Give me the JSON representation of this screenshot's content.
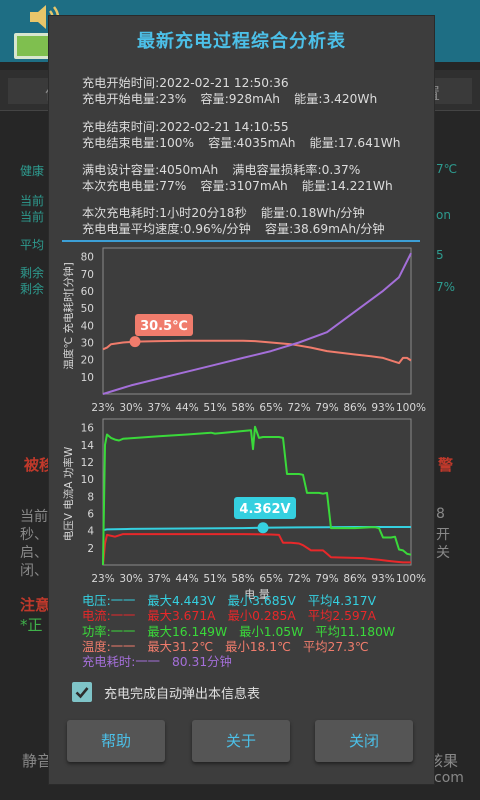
{
  "dialog": {
    "title": "最新充电过程综合分析表",
    "start": {
      "time": "充电开始时间:2022-02-21 12:50:36",
      "level": "充电开始电量:23%",
      "capacity": "容量:928mAh",
      "energy": "能量:3.420Wh"
    },
    "end": {
      "time": "充电结束时间:2022-02-21 14:10:55",
      "level": "充电结束电量:100%",
      "capacity": "容量:4035mAh",
      "energy": "能量:17.641Wh"
    },
    "design": {
      "design_capacity": "满电设计容量:4050mAh",
      "loss": "满电容量损耗率:0.37%",
      "this_charge": "本次充电电量:77%",
      "capacity": "容量:3107mAh",
      "energy": "能量:14.221Wh"
    },
    "duration": {
      "time": "本次充电耗时:1小时20分18秒",
      "energy_rate": "能量:0.18Wh/分钟",
      "avg_speed": "充电电量平均速度:0.96%/分钟",
      "capacity_rate": "容量:38.69mAh/分钟"
    },
    "stats": {
      "voltage": [
        "电压:一一",
        "最大4.443V",
        "最小3.685V",
        "平均4.317V"
      ],
      "current": [
        "电流:一一",
        "最大3.671A",
        "最小0.285A",
        "平均2.597A"
      ],
      "power": [
        "功率:一一",
        "最大16.149W",
        "最小1.05W",
        "平均11.180W"
      ],
      "temperature": [
        "温度:一一",
        "最大31.2℃",
        "最小18.1℃",
        "平均27.3℃"
      ],
      "elapsed": [
        "充电耗时:一一",
        "80.31分钟"
      ]
    },
    "auto_popup_label": "充电完成自动弹出本信息表",
    "auto_popup_checked": true,
    "buttons": {
      "help": "帮助",
      "about": "关于",
      "close": "关闭"
    }
  },
  "background": {
    "tab_left": "作",
    "tab_right": "置",
    "health": "健康",
    "line1": "当前",
    "line2": "当前",
    "line3": "平均",
    "rem1": "剩余",
    "rem2": "剩余",
    "warn_left": "被移",
    "warn_right": "警",
    "para1": "当前",
    "para2": "秒、",
    "para3": "启、",
    "para4": "闭、",
    "note": "注意",
    "note2": "*正",
    "footer_left": "静音",
    "footer_right": "核果",
    "footer_com": "com",
    "right1": "7℃",
    "right2": "on",
    "right3": "5",
    "right4": "7%",
    "rt_a": "开",
    "rt_b": "关",
    "rt_c": "8"
  },
  "chart_data": [
    {
      "type": "line",
      "xlabel": "",
      "ylabel": "温度℃  充电耗时[分钟]",
      "categories": [
        "23%",
        "30%",
        "37%",
        "44%",
        "51%",
        "58%",
        "65%",
        "72%",
        "79%",
        "86%",
        "93%",
        "100%"
      ],
      "ylim": [
        0,
        85
      ],
      "yticks": [
        10,
        20,
        30,
        40,
        50,
        60,
        70,
        80
      ],
      "marker_label": "30.5℃",
      "series": [
        {
          "name": "温度",
          "color": "#f07c6c",
          "x": [
            23,
            24,
            25,
            28,
            31,
            37,
            44,
            51,
            58,
            61,
            65,
            70,
            75,
            79,
            86,
            90,
            93,
            97,
            98,
            99,
            100
          ],
          "y": [
            26,
            27,
            29,
            30,
            30.5,
            30.8,
            31,
            31,
            31,
            30.8,
            30,
            29,
            27,
            25,
            23,
            22,
            21,
            18,
            21,
            21,
            19.5
          ]
        },
        {
          "name": "充电耗时",
          "color": "#a46fd9",
          "x": [
            23,
            30,
            37,
            44,
            51,
            58,
            65,
            72,
            79,
            86,
            93,
            97,
            100
          ],
          "y": [
            0,
            5,
            9,
            13,
            17,
            21,
            25,
            30,
            36,
            48,
            60,
            68,
            82
          ]
        }
      ]
    },
    {
      "type": "line",
      "xlabel": "电 量",
      "ylabel": "电压V  电流A  功率W",
      "categories": [
        "23%",
        "30%",
        "37%",
        "44%",
        "51%",
        "58%",
        "65%",
        "72%",
        "79%",
        "86%",
        "93%",
        "100%"
      ],
      "ylim": [
        0,
        17
      ],
      "yticks": [
        2,
        4,
        6,
        8,
        10,
        12,
        14,
        16
      ],
      "marker_label": "4.362V",
      "series": [
        {
          "name": "电压",
          "color": "#35d0e0",
          "x": [
            23,
            24,
            30,
            44,
            58,
            65,
            72,
            79,
            86,
            93,
            100
          ],
          "y": [
            4.05,
            4.15,
            4.2,
            4.25,
            4.3,
            4.36,
            4.38,
            4.4,
            4.42,
            4.42,
            4.42
          ]
        },
        {
          "name": "电流",
          "color": "#e8282a",
          "x": [
            23,
            23.5,
            24,
            26,
            28,
            58,
            65,
            67,
            68,
            70,
            72,
            73,
            75,
            78,
            79,
            80,
            88,
            90,
            92,
            94,
            96,
            98,
            100
          ],
          "y": [
            0,
            2.5,
            3.5,
            3.3,
            3.6,
            3.6,
            3.55,
            3.5,
            2.6,
            2.6,
            2.5,
            2.3,
            1.7,
            1.7,
            1.3,
            0.9,
            0.8,
            0.7,
            0.6,
            0.5,
            0.4,
            0.3,
            0.3
          ]
        },
        {
          "name": "功率",
          "color": "#3ad93a",
          "x": [
            23,
            23.5,
            24,
            25,
            26,
            27,
            28,
            37,
            44,
            50,
            51,
            58,
            60,
            60.5,
            61,
            62,
            63,
            64,
            65,
            67,
            68,
            69,
            72,
            73,
            74,
            75,
            77,
            78,
            79,
            80,
            86,
            90,
            91,
            92,
            93,
            95,
            96,
            97,
            98,
            99,
            100
          ],
          "y": [
            0,
            14,
            15.2,
            14.8,
            14.6,
            14.5,
            14.7,
            15,
            15.2,
            15.4,
            15.3,
            15.6,
            15.7,
            13.5,
            16.1,
            14.8,
            14.9,
            14.9,
            14.9,
            14.9,
            14.8,
            10.6,
            10.6,
            10.5,
            8.4,
            8.4,
            8.4,
            8.3,
            8.4,
            4.3,
            4.3,
            4.4,
            4.4,
            4.3,
            3.2,
            3.2,
            3.3,
            1.8,
            1.7,
            1.3,
            1.2
          ]
        }
      ]
    }
  ]
}
